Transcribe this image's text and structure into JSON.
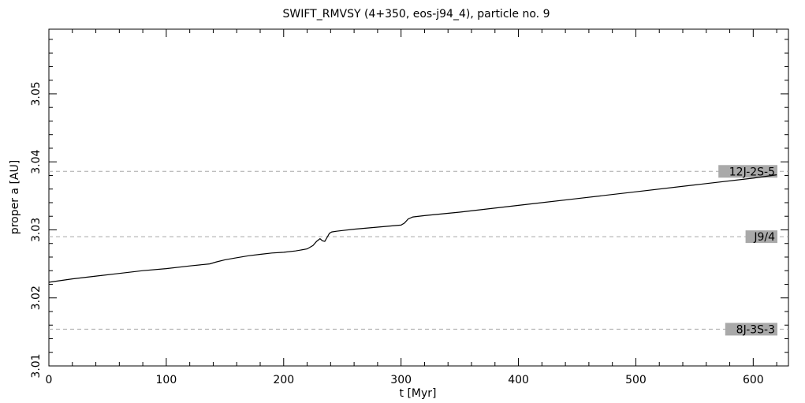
{
  "chart_data": {
    "type": "line",
    "title": "SWIFT_RMVSY (4+350, eos-j94_4), particle no. 9",
    "xlabel": "t [Myr]",
    "ylabel": "proper a [AU]",
    "xlim": [
      0,
      630
    ],
    "ylim": [
      3.01,
      3.0595
    ],
    "x_major_ticks": [
      0,
      100,
      200,
      300,
      400,
      500,
      600
    ],
    "x_tick_labels": [
      "0",
      "100",
      "200",
      "300",
      "400",
      "500",
      "600"
    ],
    "x_minor_step": 20,
    "y_major_ticks": [
      3.01,
      3.02,
      3.03,
      3.04,
      3.05
    ],
    "y_tick_labels": [
      "3.01",
      "3.02",
      "3.03",
      "3.04",
      "3.05"
    ],
    "y_minor_step": 0.002,
    "grid": false,
    "series": [
      {
        "x": [
          0,
          20,
          40,
          60,
          80,
          100,
          120,
          137,
          143,
          150,
          160,
          170,
          180,
          190,
          200,
          210,
          220,
          225,
          228,
          231,
          233,
          235,
          237,
          239,
          241,
          245,
          250,
          260,
          280,
          300,
          303,
          306,
          310,
          320,
          350,
          400,
          450,
          500,
          550,
          600,
          620
        ],
        "values": [
          3.0223,
          3.0228,
          3.0232,
          3.0236,
          3.024,
          3.0243,
          3.0247,
          3.025,
          3.0253,
          3.0256,
          3.0259,
          3.0262,
          3.0264,
          3.0266,
          3.0267,
          3.0269,
          3.0272,
          3.0277,
          3.0283,
          3.0287,
          3.0284,
          3.0283,
          3.0289,
          3.0295,
          3.0297,
          3.0298,
          3.0299,
          3.0301,
          3.0304,
          3.0307,
          3.031,
          3.0316,
          3.0319,
          3.0321,
          3.0326,
          3.0336,
          3.0346,
          3.0356,
          3.0366,
          3.0376,
          3.0381
        ]
      }
    ],
    "resonances": [
      {
        "label": "12J-2S-5",
        "a": 3.0386
      },
      {
        "label": "J9/4",
        "a": 3.029
      },
      {
        "label": "8J-3S-3",
        "a": 3.0154
      }
    ],
    "colors": {
      "series": "#000000",
      "resonance_line": "#a8a8a8",
      "resonance_label_bg": "#a9a9a9"
    }
  }
}
